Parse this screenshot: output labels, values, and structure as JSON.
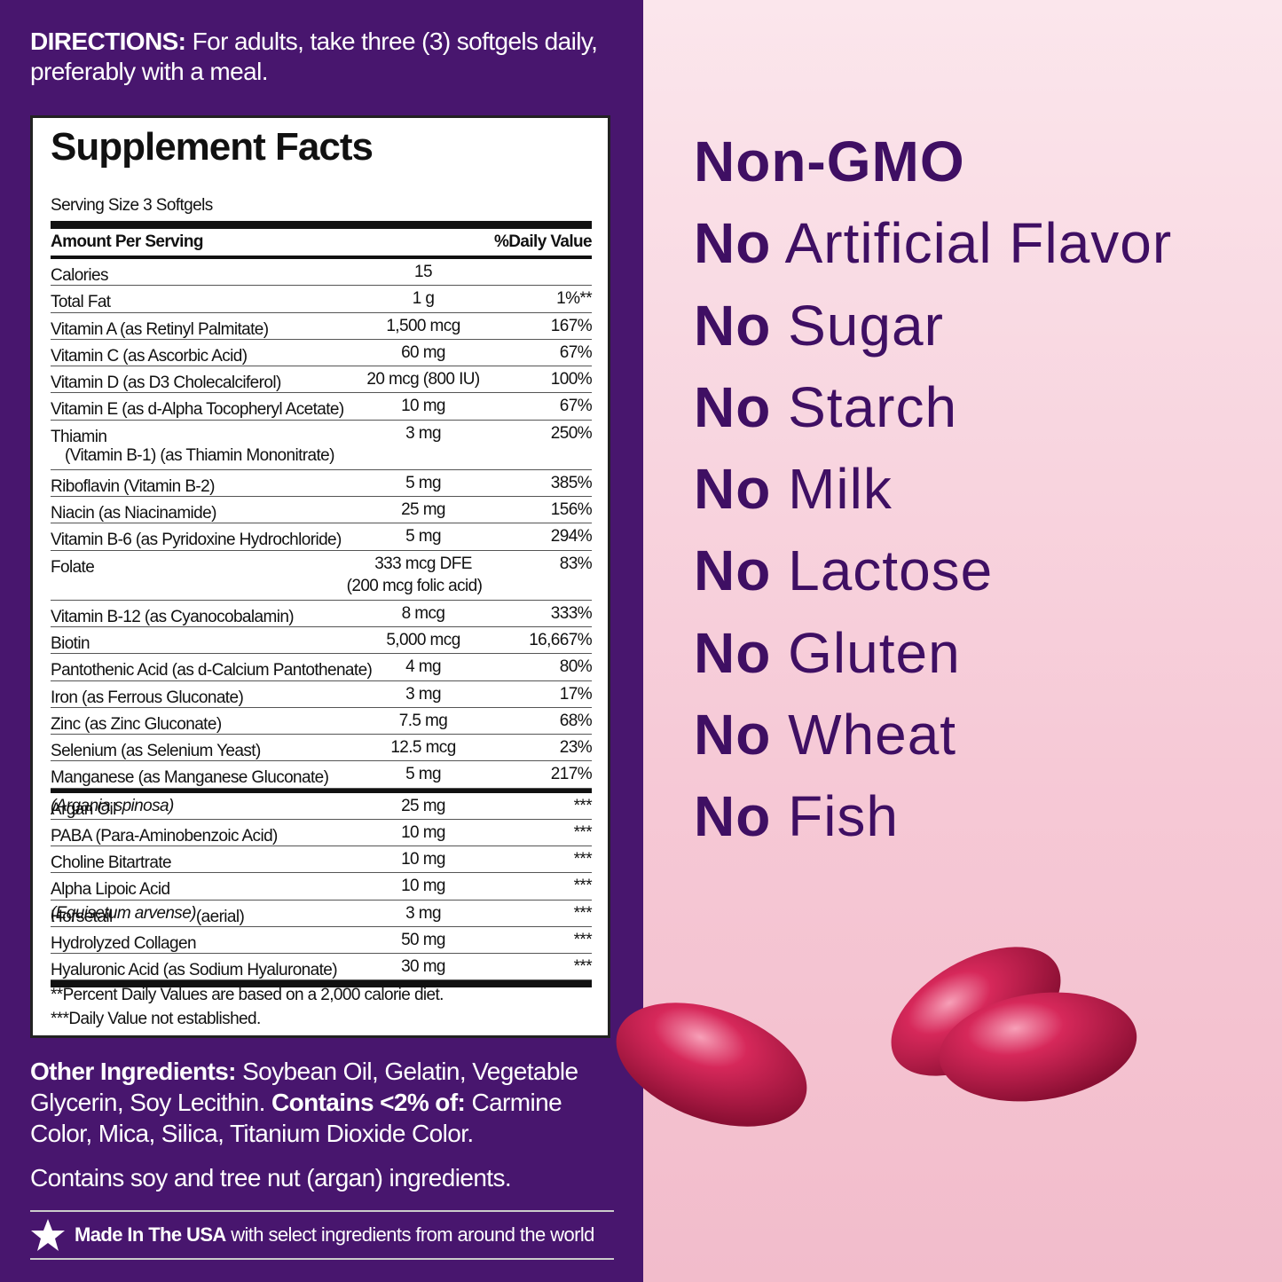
{
  "directions": {
    "label": "DIRECTIONS:",
    "text": "For adults, take three (3) softgels daily, preferably with a meal."
  },
  "facts": {
    "title": "Supplement Facts",
    "serving": "Serving Size 3 Softgels",
    "header": {
      "amount": "Amount Per Serving",
      "dv": "%Daily Value"
    },
    "rows": [
      {
        "name": "Calories",
        "amount": "15",
        "dv": ""
      },
      {
        "name": "Total Fat",
        "amount": "1 g",
        "dv": "1%**"
      },
      {
        "name": "Vitamin A (as Retinyl Palmitate)",
        "amount": "1,500 mcg",
        "dv": "167%"
      },
      {
        "name": "Vitamin C (as Ascorbic Acid)",
        "amount": "60 mg",
        "dv": "67%"
      },
      {
        "name": "Vitamin D (as D3 Cholecalciferol)",
        "amount": "20 mcg (800 IU)",
        "dv": "100%"
      },
      {
        "name": "Vitamin E (as d-Alpha Tocopheryl Acetate)",
        "amount": "10 mg",
        "dv": "67%"
      },
      {
        "name": "Thiamin",
        "name_note": "(Vitamin B-1) (as Thiamin Mononitrate)",
        "amount": "3 mg",
        "dv": "250%"
      },
      {
        "name": "Riboflavin (Vitamin B-2)",
        "amount": "5 mg",
        "dv": "385%"
      },
      {
        "name": "Niacin (as Niacinamide)",
        "amount": "25 mg",
        "dv": "156%"
      },
      {
        "name": "Vitamin B-6 (as Pyridoxine Hydrochloride)",
        "amount": "5 mg",
        "dv": "294%"
      },
      {
        "name": "Folate",
        "amount": "333 mcg DFE",
        "amount_note": "(200 mcg folic acid)",
        "dv": "83%"
      },
      {
        "name": "Vitamin B-12 (as Cyanocobalamin)",
        "amount": "8 mcg",
        "dv": "333%"
      },
      {
        "name": "Biotin",
        "amount": "5,000 mcg",
        "dv": "16,667%"
      },
      {
        "name": "Pantothenic Acid (as d-Calcium Pantothenate)",
        "amount": "4 mg",
        "dv": "80%"
      },
      {
        "name": "Iron (as Ferrous Gluconate)",
        "amount": "3 mg",
        "dv": "17%"
      },
      {
        "name": "Zinc (as Zinc Gluconate)",
        "amount": "7.5 mg",
        "dv": "68%"
      },
      {
        "name": "Selenium (as Selenium Yeast)",
        "amount": "12.5 mcg",
        "dv": "23%"
      },
      {
        "name": "Manganese (as Manganese Gluconate)",
        "amount": "5 mg",
        "dv": "217%"
      }
    ],
    "other_rows": [
      {
        "name": "Argan Oil",
        "latin": "(Argania spinosa)",
        "amount": "25 mg",
        "dv": "***"
      },
      {
        "name": "PABA (Para-Aminobenzoic Acid)",
        "amount": "10 mg",
        "dv": "***"
      },
      {
        "name": "Choline Bitartrate",
        "amount": "10 mg",
        "dv": "***"
      },
      {
        "name": "Alpha Lipoic Acid",
        "amount": "10 mg",
        "dv": "***"
      },
      {
        "name": "Horsetail",
        "latin": "(Equisetum arvense)",
        "suffix": "(aerial)",
        "amount": "3 mg",
        "dv": "***"
      },
      {
        "name": "Hydrolyzed Collagen",
        "amount": "50 mg",
        "dv": "***"
      },
      {
        "name": "Hyaluronic Acid (as Sodium Hyaluronate)",
        "amount": "30 mg",
        "dv": "***"
      }
    ],
    "footnotes": [
      "**Percent Daily Values are based on a 2,000 calorie diet.",
      "***Daily Value not established."
    ]
  },
  "other_ingredients": {
    "label": "Other Ingredients:",
    "text": "Soybean Oil, Gelatin, Vegetable Glycerin, Soy Lecithin.",
    "label2": "Contains <2% of:",
    "text2": "Carmine Color, Mica, Silica, Titanium Dioxide Color."
  },
  "allergen": "Contains soy and tree nut (argan) ingredients.",
  "origin": {
    "bold": "Made In The USA",
    "text": "with select ingredients from around the world"
  },
  "claims": [
    {
      "text": "Non-GMO"
    },
    {
      "bold": "No",
      "text": "Artificial Flavor"
    },
    {
      "bold": "No",
      "text": "Sugar"
    },
    {
      "bold": "No",
      "text": "Starch"
    },
    {
      "bold": "No",
      "text": "Milk"
    },
    {
      "bold": "No",
      "text": "Lactose"
    },
    {
      "bold": "No",
      "text": "Gluten"
    },
    {
      "bold": "No",
      "text": "Wheat"
    },
    {
      "bold": "No",
      "text": "Fish"
    }
  ]
}
